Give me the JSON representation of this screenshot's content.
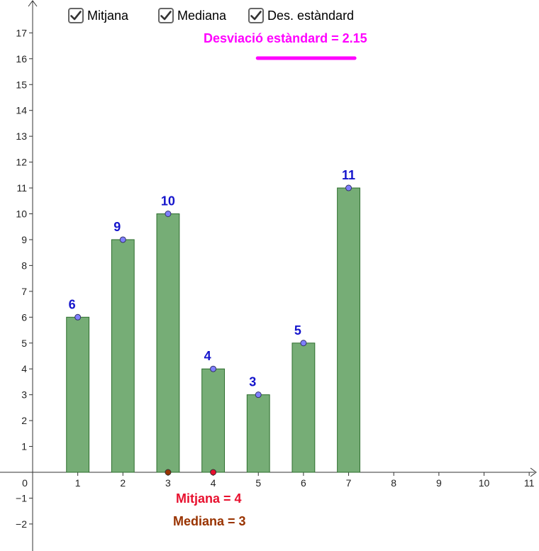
{
  "controls": {
    "mean_label": "Mitjana",
    "median_label": "Mediana",
    "stddev_label": "Des. estàndard"
  },
  "stats": {
    "stddev_text": "Desviació estàndard = 2.15",
    "mean_text": "Mitjana = 4",
    "median_text": "Mediana = 3",
    "stddev_value": 2.15,
    "mean_value": 4,
    "median_value": 3
  },
  "colors": {
    "bar_fill": "#76ad76",
    "bar_stroke": "#2d6e2d",
    "point": "#7f7fff",
    "data_label": "#1414cc",
    "stddev": "#ff00ff",
    "mean": "#e8102e",
    "median": "#993300"
  },
  "chart_data": {
    "type": "bar",
    "categories": [
      1,
      2,
      3,
      4,
      5,
      6,
      7
    ],
    "values": [
      6,
      9,
      10,
      4,
      3,
      5,
      11
    ],
    "xlim": [
      0,
      11
    ],
    "ylim": [
      -2,
      17
    ],
    "x_ticks": [
      1,
      2,
      3,
      4,
      5,
      6,
      7,
      8,
      9,
      10,
      11
    ],
    "y_ticks": [
      -2,
      -1,
      1,
      2,
      3,
      4,
      5,
      6,
      7,
      8,
      9,
      10,
      11,
      12,
      13,
      14,
      15,
      16,
      17
    ],
    "origin_label": "0",
    "grid": false,
    "title": "",
    "xlabel": "",
    "ylabel": ""
  }
}
